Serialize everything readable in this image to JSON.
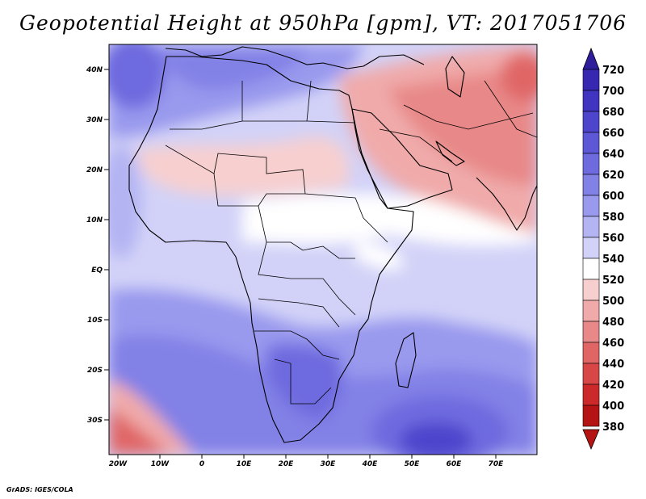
{
  "title": "Geopotential Height at 950hPa [gpm], VT: 2017051706",
  "credit": "GrADS: IGES/COLA",
  "map": {
    "lat_labels": [
      "40N",
      "30N",
      "20N",
      "10N",
      "EQ",
      "10S",
      "20S",
      "30S"
    ],
    "lon_labels": [
      "20W",
      "10W",
      "0",
      "10E",
      "20E",
      "30E",
      "40E",
      "50E",
      "60E",
      "70E"
    ],
    "lat_range": [
      -37,
      45
    ],
    "lon_range": [
      -22,
      80
    ]
  },
  "colorbar": {
    "levels": [
      "720",
      "700",
      "680",
      "660",
      "640",
      "620",
      "600",
      "580",
      "560",
      "540",
      "520",
      "500",
      "480",
      "460",
      "440",
      "420",
      "400",
      "380"
    ],
    "colors": [
      "#2e1e9b",
      "#3628b0",
      "#4034c0",
      "#4d45cc",
      "#5c58d6",
      "#6e6bdf",
      "#8281e6",
      "#9999ee",
      "#b4b4f3",
      "#d2d2f8",
      "#ffffff",
      "#f7cfcf",
      "#f0aaaa",
      "#e88888",
      "#e06666",
      "#d84747",
      "#cc2a2a",
      "#b51414"
    ]
  },
  "chart_data": {
    "type": "heatmap",
    "title": "Geopotential Height at 950hPa [gpm], VT: 2017051706",
    "variable": "Geopotential Height",
    "level": "950hPa",
    "units": "gpm",
    "valid_time": "2017051706",
    "lon_range": [
      -22,
      80
    ],
    "lat_range": [
      -37,
      45
    ],
    "color_levels": [
      380,
      400,
      420,
      440,
      460,
      480,
      500,
      520,
      540,
      560,
      580,
      600,
      620,
      640,
      660,
      680,
      700,
      720
    ]
  }
}
